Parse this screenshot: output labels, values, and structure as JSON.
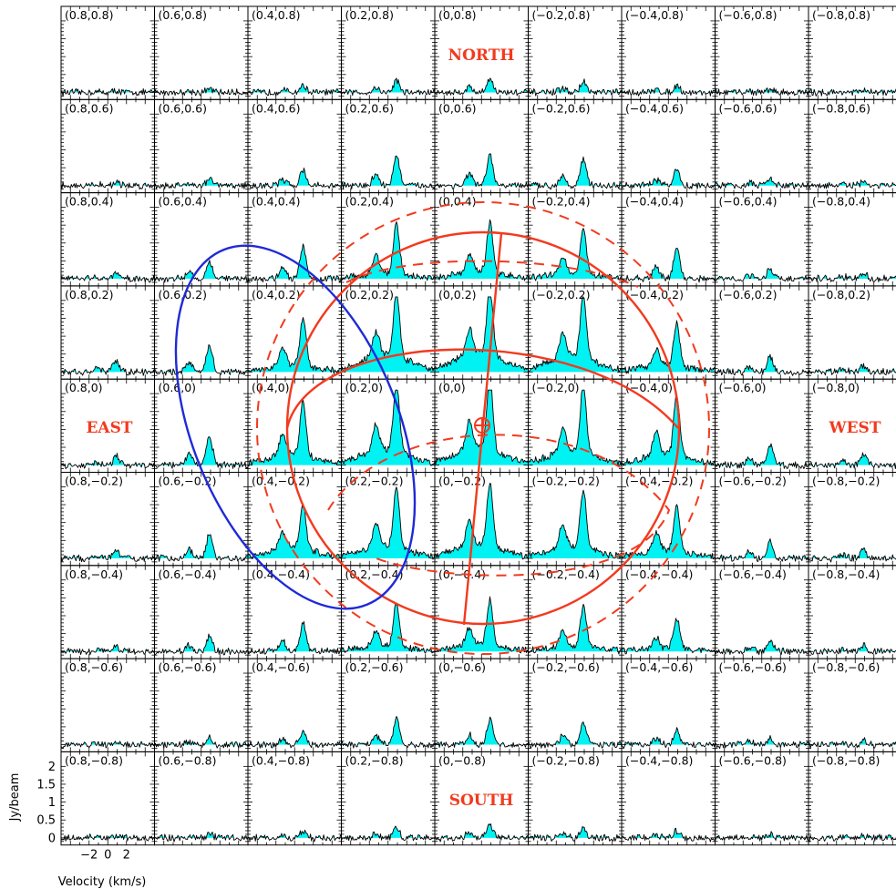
{
  "chart_data": {
    "type": "line",
    "layout": "spectral-map-grid",
    "rows": 9,
    "cols": 9,
    "offsets": [
      "0.8",
      "0.6",
      "0.4",
      "0.2",
      "0",
      "-0.2",
      "-0.4",
      "-0.6",
      "-0.8"
    ],
    "panel_labels": [
      [
        "(0.8,0.8)",
        "(0.6,0.8)",
        "(0.4,0.8)",
        "(0.2,0.8)",
        "(0,0.8)",
        "(−0.2,0.8)",
        "(−0.4,0.8)",
        "(−0.6,0.8)",
        "(−0.8,0.8)"
      ],
      [
        "(0.8,0.6)",
        "(0.6,0.6)",
        "(0.4,0.6)",
        "(0.2,0.6)",
        "(0,0.6)",
        "(−0.2,0.6)",
        "(−0.4,0.6)",
        "(−0.6,0.6)",
        "(−0.8,0.6)"
      ],
      [
        "(0.8,0.4)",
        "(0.6,0.4)",
        "(0.4,0.4)",
        "(0.2,0.4)",
        "(0,0.4)",
        "(−0.2,0.4)",
        "(−0.4,0.4)",
        "(−0.6,0.4)",
        "(−0.8,0.4)"
      ],
      [
        "(0.8,0.2)",
        "(0.6,0.2)",
        "(0.4,0.2)",
        "(0.2,0.2)",
        "(0,0.2)",
        "(−0.2,0.2)",
        "(−0.4,0.2)",
        "(−0.6,0.2)",
        "(−0.8,0.2)"
      ],
      [
        "(0.8,0)",
        "(0.6,0)",
        "(0.4,0)",
        "(0.2,0)",
        "(0,0)",
        "(−0.2,0)",
        "(−0.4,0)",
        "(−0.6,0)",
        "(−0.8,0)"
      ],
      [
        "(0.8,−0.2)",
        "(0.6,−0.2)",
        "(0.4,−0.2)",
        "(0.2,−0.2)",
        "(0,−0.2)",
        "(−0.2,−0.2)",
        "(−0.4,−0.2)",
        "(−0.6,−0.2)",
        "(−0.8,−0.2)"
      ],
      [
        "(0.8,−0.4)",
        "(0.6,−0.4)",
        "(0.4,−0.4)",
        "(0.2,−0.4)",
        "(0,−0.4)",
        "(−0.2,−0.4)",
        "(−0.4,−0.4)",
        "(−0.6,−0.4)",
        "(−0.8,−0.4)"
      ],
      [
        "(0.8,−0.6)",
        "(0.6,−0.6)",
        "(0.4,−0.6)",
        "(0.2,−0.6)",
        "(0,−0.6)",
        "(−0.2,−0.6)",
        "(−0.4,−0.6)",
        "(−0.6,−0.6)",
        "(−0.8,−0.6)"
      ],
      [
        "(0.8,−0.8)",
        "(0.6,−0.8)",
        "(0.4,−0.8)",
        "(0.2,−0.8)",
        "(0,−0.8)",
        "(−0.2,−0.8)",
        "(−0.4,−0.8)",
        "(−0.6,−0.8)",
        "(−0.8,−0.8)"
      ]
    ],
    "peak_jy": [
      [
        0.05,
        0.1,
        0.2,
        0.35,
        0.4,
        0.3,
        0.2,
        0.1,
        0.05
      ],
      [
        0.1,
        0.2,
        0.45,
        0.85,
        0.85,
        0.75,
        0.45,
        0.2,
        0.1
      ],
      [
        0.15,
        0.5,
        0.9,
        1.4,
        1.4,
        1.3,
        0.9,
        0.3,
        0.15
      ],
      [
        0.3,
        0.75,
        1.3,
        1.8,
        1.9,
        1.75,
        1.2,
        0.45,
        0.2
      ],
      [
        0.25,
        0.8,
        1.5,
        1.9,
        2.0,
        1.9,
        1.7,
        0.55,
        0.3
      ],
      [
        0.2,
        0.7,
        1.2,
        1.7,
        1.75,
        1.6,
        1.25,
        0.5,
        0.25
      ],
      [
        0.15,
        0.45,
        0.8,
        1.2,
        1.25,
        1.15,
        0.85,
        0.35,
        0.15
      ],
      [
        0.1,
        0.2,
        0.35,
        0.7,
        0.7,
        0.6,
        0.4,
        0.2,
        0.1
      ],
      [
        0.05,
        0.1,
        0.2,
        0.3,
        0.35,
        0.3,
        0.2,
        0.1,
        0.05
      ]
    ],
    "baseline_jy": [
      [
        0,
        0,
        0,
        0,
        0,
        0,
        0,
        0,
        0
      ],
      [
        0,
        0,
        0,
        0,
        0,
        0,
        0,
        0,
        0
      ],
      [
        0,
        0,
        0,
        0.15,
        0.2,
        0.15,
        0,
        0,
        0
      ],
      [
        0,
        0,
        0.2,
        0.5,
        0.55,
        0.45,
        0.2,
        0,
        0
      ],
      [
        0,
        0,
        0.3,
        0.45,
        0.5,
        0.4,
        0.3,
        0,
        0
      ],
      [
        0,
        0,
        0.3,
        0.35,
        0.4,
        0.35,
        0.25,
        0,
        0
      ],
      [
        0,
        0,
        0,
        0.15,
        0.2,
        0.15,
        0.1,
        0,
        0
      ],
      [
        0,
        0,
        0,
        0,
        0,
        0,
        0,
        0,
        0
      ],
      [
        0,
        0,
        0,
        0,
        0,
        0,
        0,
        0,
        0
      ]
    ],
    "x_range": [
      -5,
      5
    ],
    "y_range": [
      -0.2,
      2.1
    ],
    "x_ticks": [
      -2,
      0,
      2
    ],
    "y_ticks": [
      0,
      0.5,
      1,
      1.5,
      2
    ],
    "x_tick_labels": [
      "−2",
      "0",
      "2"
    ],
    "y_tick_labels": [
      "0",
      "0.5",
      "1",
      "1.5",
      "2"
    ],
    "xlabel": "Velocity (km/s)",
    "ylabel": "Jy/beam",
    "fill_color": "#00f2f2",
    "line_color": "#000000",
    "direction_labels": {
      "north": "NORTH",
      "south": "SOUTH",
      "east": "EAST",
      "west": "WEST"
    },
    "overlay_colors": {
      "ring": "#f23a1e",
      "outflow": "#1f2ad6"
    }
  }
}
